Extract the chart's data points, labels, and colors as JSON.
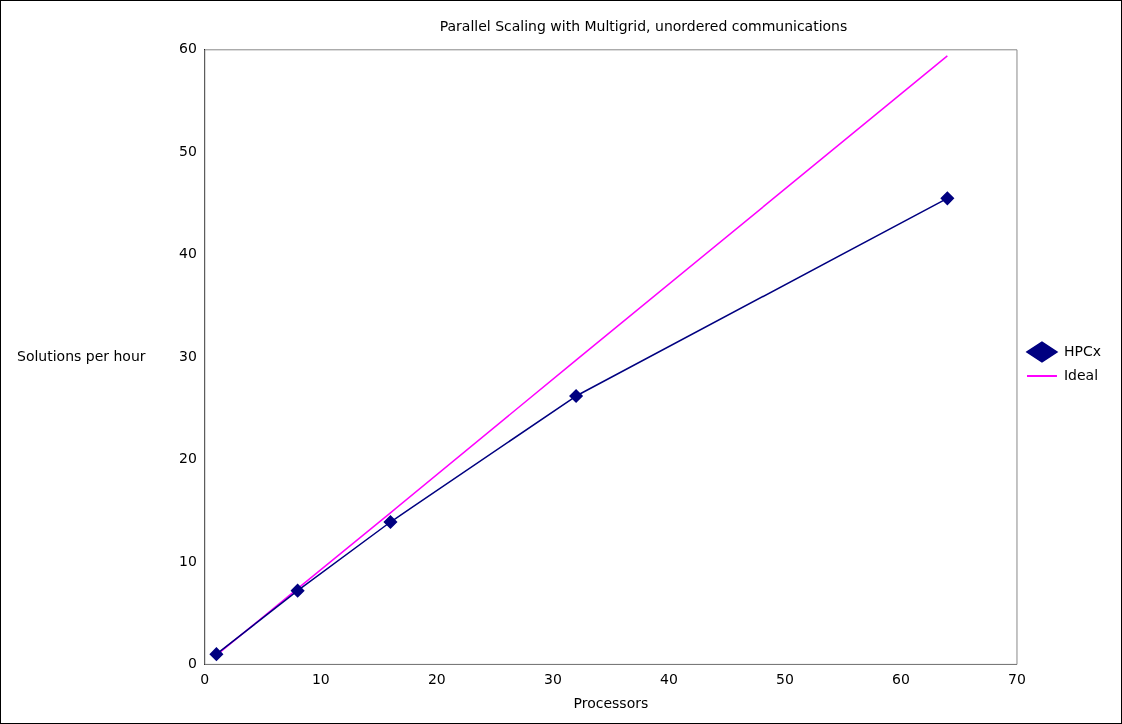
{
  "chart_data": {
    "type": "line",
    "title": "Parallel Scaling with Multigrid, unordered communications",
    "xlabel": "Processors",
    "ylabel": "Solutions per hour",
    "xlim": [
      0,
      70
    ],
    "xticks": [
      0,
      10,
      20,
      30,
      40,
      50,
      60,
      70
    ],
    "ylim": [
      0,
      60
    ],
    "yticks": [
      0,
      10,
      20,
      30,
      40,
      50,
      60
    ],
    "grid": false,
    "legend": "right",
    "series": [
      {
        "name": "HPCx",
        "color": "#000080",
        "marker": "diamond",
        "x": [
          1,
          8,
          16,
          32,
          64
        ],
        "values": [
          1.0,
          7.2,
          13.9,
          26.2,
          45.5
        ]
      },
      {
        "name": "Ideal",
        "color": "#ff00ff",
        "marker": "none",
        "x": [
          1,
          8,
          16,
          32,
          64
        ],
        "values": [
          0.9,
          7.4,
          14.8,
          29.7,
          59.4
        ]
      }
    ]
  }
}
